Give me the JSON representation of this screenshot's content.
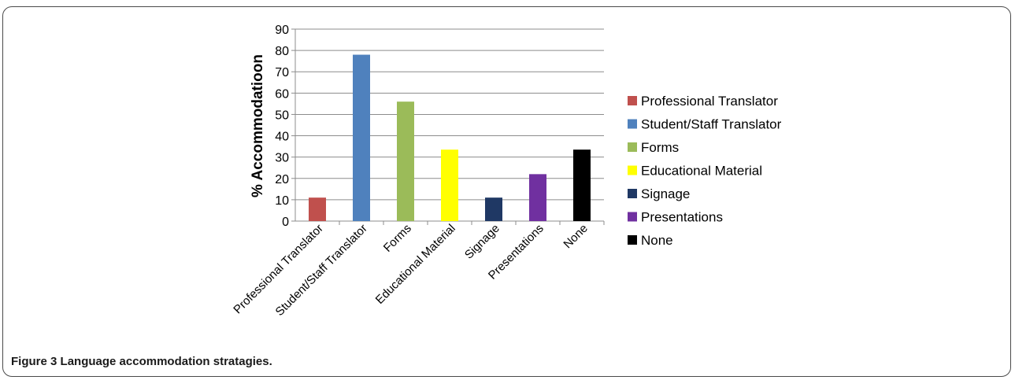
{
  "figure": {
    "label": "Figure 3",
    "caption": "Language accommodation stratagies."
  },
  "chart_data": {
    "type": "bar",
    "ylabel": "% Accommodatioon",
    "xlabel": "",
    "ylim": [
      0,
      90
    ],
    "yticks": [
      0,
      10,
      20,
      30,
      40,
      50,
      60,
      70,
      80,
      90
    ],
    "grid": true,
    "legend_position": "right",
    "categories": [
      "Professional Translator",
      "Student/Staff Translator",
      "Forms",
      "Educational Material",
      "Signage",
      "Presentations",
      "None"
    ],
    "values": [
      11,
      78,
      56,
      33.5,
      11,
      22,
      33.5
    ],
    "colors": [
      "#c0504d",
      "#4f81bd",
      "#9bbb59",
      "#ffff00",
      "#1f3864",
      "#7030a0",
      "#000000"
    ],
    "legend": [
      "Professional Translator",
      "Student/Staff Translator",
      "Forms",
      "Educational Material",
      "Signage",
      "Presentations",
      "None"
    ]
  }
}
